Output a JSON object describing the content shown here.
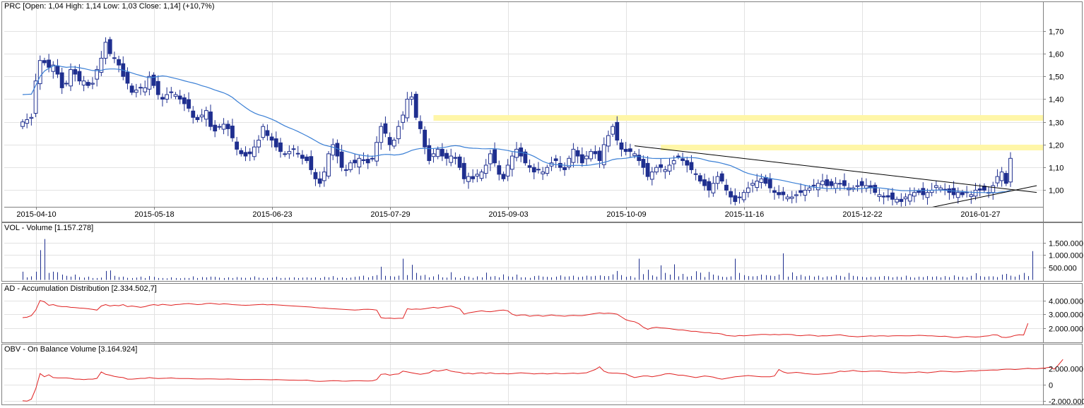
{
  "colors": {
    "up_fill": "#ffffff",
    "down_fill": "#1f2f8f",
    "candle_border": "#1f2f8f",
    "ma_line": "#3a7fd5",
    "volume_bars": "#1f2f8f",
    "indicator_line": "#e02020",
    "trend_lines": "#000000",
    "zone_fill": "#fff6a8",
    "grid": "#e2e2e2",
    "frame": "#808080"
  },
  "panels": {
    "price": {
      "title": "PRC [Open: 1,04  High: 1,14  Low: 1,03  Close: 1,14] (+10,7%)"
    },
    "volume": {
      "title": "VOL - Volume [1.157.278]"
    },
    "ad": {
      "title": "AD - Accumulation Distribution [2.334.502,7]"
    },
    "obv": {
      "title": "OBV - On Balance Volume [3.164.924]"
    }
  },
  "chart_data": [
    {
      "type": "candlestick",
      "panel": "price",
      "x_tick_labels": [
        "2015-04-10",
        "2015-05-18",
        "2015-06-23",
        "2015-07-29",
        "2015-09-03",
        "2015-10-09",
        "2015-11-16",
        "2015-12-22",
        "2016-01-27"
      ],
      "x_tick_index": [
        3,
        30,
        57,
        84,
        111,
        138,
        165,
        192,
        219
      ],
      "y_ticks": [
        1.0,
        1.1,
        1.2,
        1.3,
        1.4,
        1.5,
        1.6,
        1.7
      ],
      "y_tick_labels": [
        "1,00",
        "1,10",
        "1,20",
        "1,30",
        "1,40",
        "1,50",
        "1,60",
        "1,70"
      ],
      "ylim": [
        0.93,
        1.78
      ],
      "grid": true,
      "close": [
        1.3,
        1.31,
        1.32,
        1.48,
        1.57,
        1.56,
        1.54,
        1.55,
        1.51,
        1.45,
        1.47,
        1.53,
        1.51,
        1.48,
        1.48,
        1.46,
        1.47,
        1.53,
        1.58,
        1.65,
        1.6,
        1.58,
        1.55,
        1.5,
        1.47,
        1.43,
        1.44,
        1.45,
        1.45,
        1.5,
        1.46,
        1.42,
        1.4,
        1.42,
        1.43,
        1.42,
        1.4,
        1.38,
        1.36,
        1.32,
        1.31,
        1.33,
        1.35,
        1.28,
        1.26,
        1.28,
        1.29,
        1.27,
        1.23,
        1.18,
        1.16,
        1.15,
        1.16,
        1.19,
        1.22,
        1.28,
        1.24,
        1.22,
        1.19,
        1.17,
        1.16,
        1.17,
        1.18,
        1.16,
        1.14,
        1.13,
        1.09,
        1.05,
        1.03,
        1.08,
        1.16,
        1.2,
        1.15,
        1.1,
        1.09,
        1.12,
        1.12,
        1.14,
        1.13,
        1.12,
        1.14,
        1.21,
        1.28,
        1.25,
        1.2,
        1.22,
        1.28,
        1.33,
        1.4,
        1.41,
        1.32,
        1.27,
        1.19,
        1.13,
        1.16,
        1.18,
        1.15,
        1.14,
        1.15,
        1.14,
        1.1,
        1.05,
        1.06,
        1.05,
        1.07,
        1.08,
        1.11,
        1.16,
        1.12,
        1.07,
        1.05,
        1.11,
        1.15,
        1.18,
        1.15,
        1.12,
        1.1,
        1.08,
        1.09,
        1.08,
        1.1,
        1.12,
        1.13,
        1.1,
        1.09,
        1.14,
        1.18,
        1.15,
        1.12,
        1.15,
        1.17,
        1.16,
        1.13,
        1.2,
        1.24,
        1.28,
        1.22,
        1.18,
        1.17,
        1.17,
        1.16,
        1.13,
        1.1,
        1.06,
        1.08,
        1.1,
        1.1,
        1.09,
        1.11,
        1.13,
        1.15,
        1.13,
        1.11,
        1.09,
        1.07,
        1.04,
        1.02,
        1.0,
        1.03,
        1.06,
        1.04,
        1.0,
        0.97,
        0.95,
        0.97,
        0.99,
        1.01,
        1.03,
        1.04,
        1.05,
        1.03,
        1.01,
        0.99,
        0.98,
        0.98,
        0.97,
        0.97,
        0.98,
        0.99,
        1.0,
        1.01,
        1.02,
        1.03,
        1.04,
        1.02,
        1.02,
        1.03,
        1.03,
        1.02,
        1.01,
        1.01,
        1.02,
        1.02,
        1.02,
        1.01,
        0.99,
        0.98,
        0.97,
        0.97,
        0.96,
        0.96,
        0.95,
        0.97,
        0.98,
        0.99,
        0.99,
        0.98,
        0.99,
        1.0,
        1.02,
        1.01,
        1.0,
        0.99,
        0.98,
        0.99,
        0.98,
        0.99,
        0.98,
        1.0,
        1.0,
        1.0,
        0.99,
        1.02,
        1.06,
        1.08,
        1.03,
        1.14
      ]
    },
    {
      "type": "bar",
      "panel": "volume",
      "y_ticks": [
        500000,
        1000000,
        1500000
      ],
      "y_tick_labels": [
        "500.000",
        "1.000.000",
        "1.500.000"
      ],
      "ylim": [
        0,
        1900000
      ],
      "values": [
        320000,
        90000,
        130000,
        320000,
        1200000,
        1650000,
        270000,
        320000,
        300000,
        200000,
        150000,
        120000,
        200000,
        100000,
        80000,
        120000,
        60000,
        60000,
        80000,
        350000,
        370000,
        150000,
        100000,
        120000,
        70000,
        60000,
        80000,
        120000,
        60000,
        140000,
        110000,
        60000,
        60000,
        50000,
        90000,
        60000,
        50000,
        70000,
        60000,
        130000,
        60000,
        100000,
        90000,
        120000,
        110000,
        80000,
        60000,
        90000,
        60000,
        100000,
        80000,
        70000,
        80000,
        130000,
        80000,
        60000,
        70000,
        80000,
        110000,
        60000,
        70000,
        80000,
        90000,
        60000,
        80000,
        90000,
        70000,
        90000,
        60000,
        110000,
        90000,
        140000,
        70000,
        90000,
        60000,
        80000,
        110000,
        130000,
        160000,
        90000,
        140000,
        180000,
        520000,
        150000,
        140000,
        120000,
        160000,
        850000,
        180000,
        600000,
        270000,
        160000,
        190000,
        90000,
        130000,
        210000,
        90000,
        80000,
        300000,
        90000,
        60000,
        140000,
        120000,
        70000,
        130000,
        90000,
        280000,
        120000,
        140000,
        90000,
        210000,
        130000,
        110000,
        200000,
        90000,
        90000,
        70000,
        140000,
        160000,
        120000,
        110000,
        90000,
        120000,
        170000,
        120000,
        130000,
        160000,
        100000,
        120000,
        160000,
        130000,
        150000,
        170000,
        140000,
        140000,
        210000,
        350000,
        180000,
        110000,
        140000,
        80000,
        850000,
        220000,
        400000,
        170000,
        120000,
        580000,
        270000,
        200000,
        620000,
        130000,
        230000,
        120000,
        140000,
        340000,
        280000,
        100000,
        310000,
        200000,
        160000,
        110000,
        100000,
        130000,
        850000,
        270000,
        180000,
        140000,
        130000,
        140000,
        200000,
        180000,
        160000,
        140000,
        200000,
        1070000,
        120000,
        290000,
        140000,
        190000,
        130000,
        160000,
        120000,
        160000,
        90000,
        130000,
        120000,
        180000,
        150000,
        110000,
        270000,
        150000,
        130000,
        110000,
        90000,
        110000,
        100000,
        120000,
        140000,
        130000,
        90000,
        120000,
        100000,
        160000,
        100000,
        80000,
        120000,
        100000,
        140000,
        110000,
        130000,
        90000,
        140000,
        100000,
        170000,
        110000,
        120000,
        90000,
        150000,
        260000,
        140000,
        110000,
        130000,
        130000,
        100000,
        200000,
        230000,
        160000,
        120000,
        190000,
        270000,
        140000,
        1157278
      ]
    },
    {
      "type": "line",
      "panel": "ad",
      "series_name": "AD - Accumulation Distribution",
      "y_ticks": [
        2000000,
        3000000,
        4000000
      ],
      "y_tick_labels": [
        "2.000.000",
        "3.000.000",
        "4.000.000"
      ],
      "ylim": [
        1100000,
        4500000
      ],
      "values": [
        2750000,
        2780000,
        2900000,
        3300000,
        4000000,
        3900000,
        3650000,
        3700000,
        3600000,
        3550000,
        3550000,
        3500000,
        3480000,
        3450000,
        3430000,
        3400000,
        3350000,
        3300000,
        3600000,
        3700000,
        3600000,
        3650000,
        3620000,
        3700000,
        3550000,
        3600000,
        3550000,
        3500000,
        3550000,
        3650000,
        3700000,
        3650000,
        3720000,
        3680000,
        3650000,
        3700000,
        3720000,
        3760000,
        3780000,
        3740000,
        3700000,
        3720000,
        3780000,
        3800000,
        3760000,
        3720000,
        3760000,
        3740000,
        3700000,
        3680000,
        3660000,
        3650000,
        3660000,
        3680000,
        3700000,
        3720000,
        3680000,
        3700000,
        3680000,
        3660000,
        3640000,
        3620000,
        3600000,
        3580000,
        3560000,
        3540000,
        3520000,
        3480000,
        3460000,
        3450000,
        3420000,
        3400000,
        3380000,
        3360000,
        3340000,
        3320000,
        3300000,
        3320000,
        3350000,
        3360000,
        3340000,
        3300000,
        2750000,
        2700000,
        2720000,
        2680000,
        2700000,
        2700000,
        3400000,
        3350000,
        3380000,
        3360000,
        3400000,
        3450000,
        3500000,
        3450000,
        3500000,
        3550000,
        3600000,
        3500000,
        3400000,
        3000000,
        3100000,
        3150000,
        3200000,
        3250000,
        3200000,
        3180000,
        3220000,
        3280000,
        3300000,
        3250000,
        3000000,
        2900000,
        2950000,
        2950000,
        2850000,
        2900000,
        2920000,
        2850000,
        2900000,
        2950000,
        2900000,
        2880000,
        2850000,
        2900000,
        2920000,
        2900000,
        2900000,
        2950000,
        3000000,
        3050000,
        3100000,
        3050000,
        3080000,
        3050000,
        3000000,
        2800000,
        2600000,
        2500000,
        2450000,
        2300000,
        2050000,
        1900000,
        2000000,
        2050000,
        2000000,
        1980000,
        1950000,
        1900000,
        1850000,
        1850000,
        1800000,
        1750000,
        1750000,
        1700000,
        1650000,
        1650000,
        1600000,
        1600000,
        1550000,
        1450000,
        1420000,
        1400000,
        1450000,
        1420000,
        1450000,
        1480000,
        1500000,
        1520000,
        1520000,
        1500000,
        1520000,
        1500000,
        1530000,
        1530000,
        1510000,
        1450000,
        1430000,
        1460000,
        1480000,
        1450000,
        1400000,
        1430000,
        1420000,
        1450000,
        1480000,
        1500000,
        1440000,
        1400000,
        1380000,
        1350000,
        1380000,
        1400000,
        1420000,
        1400000,
        1420000,
        1420000,
        1400000,
        1420000,
        1430000,
        1430000,
        1420000,
        1420000,
        1440000,
        1460000,
        1450000,
        1420000,
        1420000,
        1400000,
        1380000,
        1400000,
        1350000,
        1300000,
        1300000,
        1350000,
        1380000,
        1350000,
        1330000,
        1350000,
        1400000,
        1420000,
        1500000,
        1480000,
        1320000,
        1300000,
        1350000,
        1450000,
        1500000,
        1480000,
        2334503
      ]
    },
    {
      "type": "line",
      "panel": "obv",
      "series_name": "OBV - On Balance Volume",
      "y_ticks": [
        -2000000,
        0,
        2000000
      ],
      "y_tick_labels": [
        "-2.000.000",
        "0",
        "2.000.000"
      ],
      "ylim": [
        -2200000,
        3800000
      ],
      "values": [
        -2000000,
        -2050000,
        -1800000,
        -500000,
        1400000,
        1000000,
        1250000,
        900000,
        850000,
        850000,
        850000,
        800000,
        700000,
        700000,
        650000,
        700000,
        700000,
        800000,
        1600000,
        1300000,
        1200000,
        1050000,
        950000,
        900000,
        700000,
        700000,
        750000,
        800000,
        800000,
        900000,
        820000,
        780000,
        800000,
        820000,
        850000,
        800000,
        780000,
        770000,
        770000,
        750000,
        720000,
        720000,
        740000,
        740000,
        720000,
        700000,
        700000,
        720000,
        700000,
        680000,
        660000,
        640000,
        640000,
        660000,
        660000,
        640000,
        630000,
        620000,
        640000,
        620000,
        600000,
        580000,
        580000,
        560000,
        560000,
        580000,
        500000,
        450000,
        420000,
        450000,
        480000,
        520000,
        500000,
        460000,
        450000,
        480000,
        500000,
        500000,
        480000,
        470000,
        490000,
        650000,
        1300000,
        1350000,
        1200000,
        1300000,
        1350000,
        1700000,
        1600000,
        1500000,
        1400000,
        1300000,
        1400000,
        1500000,
        1800000,
        1700000,
        1800000,
        1900000,
        1700000,
        1600000,
        1550000,
        1400000,
        1450000,
        1350000,
        1450000,
        1500000,
        1400000,
        1500000,
        1400000,
        1380000,
        1420000,
        1350000,
        1400000,
        1450000,
        1500000,
        1450000,
        1420000,
        1350000,
        1400000,
        1420000,
        1350000,
        1400000,
        1450000,
        1400000,
        1380000,
        1420000,
        1450000,
        1400000,
        1450000,
        1500000,
        1700000,
        1900000,
        2250000,
        1700000,
        1500000,
        1450000,
        1450000,
        1400000,
        1350000,
        1100000,
        900000,
        1000000,
        1100000,
        1100000,
        1000000,
        1100000,
        1200000,
        1350000,
        1400000,
        1300000,
        1200000,
        1200000,
        1100000,
        1000000,
        900000,
        1000000,
        1100000,
        1050000,
        950000,
        800000,
        700000,
        800000,
        900000,
        1000000,
        1050000,
        1100000,
        1150000,
        1100000,
        1050000,
        1000000,
        1000000,
        1000000,
        1100000,
        1900000,
        1600000,
        1450000,
        1500000,
        1550000,
        1500000,
        1400000,
        1350000,
        1300000,
        1300000,
        1350000,
        1400000,
        1450000,
        1550000,
        1700000,
        1650000,
        1700000,
        1800000,
        1700000,
        1650000,
        1650000,
        1700000,
        1700000,
        1720000,
        1650000,
        1600000,
        1550000,
        1520000,
        1500000,
        1480000,
        1520000,
        1540000,
        1600000,
        1550000,
        1500000,
        1560000,
        1620000,
        1700000,
        1680000,
        1650000,
        1600000,
        1620000,
        1650000,
        1700000,
        1750000,
        1720000,
        1780000,
        1800000,
        1820000,
        1850000,
        1830000,
        1900000,
        1950000,
        1950000,
        1900000,
        1950000,
        2000000,
        2050000,
        2000000,
        2000000,
        2050000,
        2100000,
        2200000,
        1950000,
        2500000,
        3164924
      ]
    }
  ]
}
